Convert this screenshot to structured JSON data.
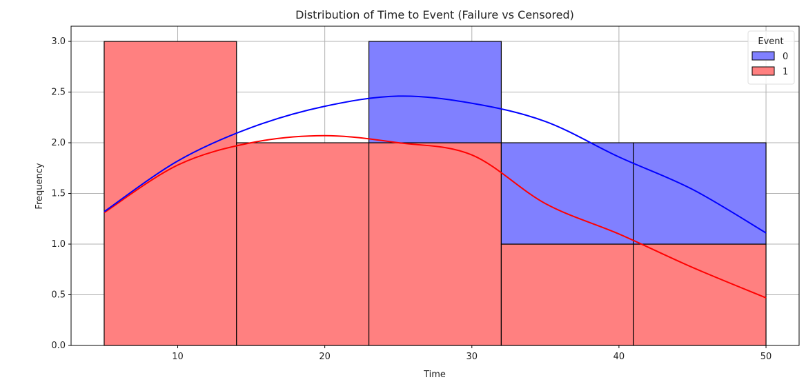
{
  "chart_data": {
    "type": "histogram-stacked-with-kde",
    "title": "Distribution of Time to Event (Failure vs Censored)",
    "xlabel": "Time",
    "ylabel": "Frequency",
    "xlim": [
      2.75,
      52.25
    ],
    "ylim": [
      0,
      3.15
    ],
    "xticks": [
      10,
      20,
      30,
      40,
      50
    ],
    "yticks": [
      0.0,
      0.5,
      1.0,
      1.5,
      2.0,
      2.5,
      3.0
    ],
    "grid": true,
    "bin_edges": [
      5,
      14,
      23,
      32,
      41,
      50
    ],
    "legend": {
      "title": "Event",
      "placement": "top-right"
    },
    "series": [
      {
        "name": "1",
        "color": "#ff0000",
        "fill": "#ff8080",
        "counts": [
          3,
          2,
          2,
          1,
          1
        ],
        "kde": {
          "x": [
            5,
            10,
            15,
            20,
            25,
            30,
            35,
            40,
            45,
            50
          ],
          "y": [
            1.31,
            1.78,
            2.0,
            2.07,
            2.0,
            1.88,
            1.4,
            1.1,
            0.77,
            0.47
          ]
        }
      },
      {
        "name": "0",
        "color": "#0000ff",
        "fill": "#8080ff",
        "counts": [
          0,
          0,
          1,
          1,
          1
        ],
        "kde": {
          "x": [
            5,
            10,
            15,
            20,
            25,
            30,
            35,
            40,
            45,
            50
          ],
          "y": [
            1.32,
            1.82,
            2.15,
            2.36,
            2.46,
            2.39,
            2.21,
            1.86,
            1.54,
            1.11
          ]
        }
      }
    ]
  }
}
